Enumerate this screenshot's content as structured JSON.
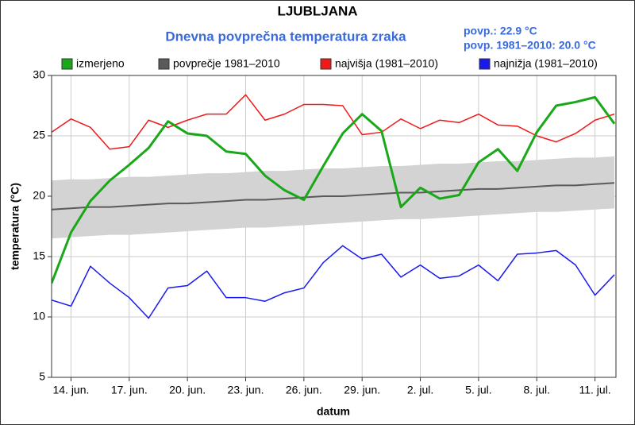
{
  "chart_data": {
    "type": "line",
    "title": "LJUBLJANA",
    "subtitle": "Dnevna povprečna temperatura zraka",
    "annotations": [
      "povp.: 22.9 °C",
      "povp. 1981–2010: 20.0 °C"
    ],
    "xlabel": "datum",
    "ylabel": "temperatura (°C)",
    "categories": [
      null,
      "14. jun.",
      null,
      null,
      "17. jun.",
      null,
      null,
      "20. jun.",
      null,
      null,
      "23. jun.",
      null,
      null,
      "26. jun.",
      null,
      null,
      "29. jun.",
      null,
      null,
      "2. jul.",
      null,
      null,
      "5. jul.",
      null,
      null,
      "8. jul.",
      null,
      null,
      "11. jul.",
      null
    ],
    "ylim": [
      5,
      30
    ],
    "yticks": [
      5,
      10,
      15,
      20,
      25,
      30
    ],
    "grid": true,
    "legend": "top",
    "band": {
      "color": "#d3d3d3",
      "lower": [
        16.5,
        16.6,
        16.7,
        16.8,
        16.8,
        16.9,
        17.0,
        17.1,
        17.2,
        17.3,
        17.4,
        17.4,
        17.5,
        17.6,
        17.7,
        17.8,
        17.9,
        18.0,
        18.1,
        18.1,
        18.2,
        18.3,
        18.4,
        18.5,
        18.6,
        18.7,
        18.7,
        18.8,
        18.9,
        19.0
      ],
      "upper": [
        21.3,
        21.4,
        21.4,
        21.5,
        21.6,
        21.6,
        21.7,
        21.8,
        21.9,
        21.9,
        22.0,
        22.1,
        22.1,
        22.2,
        22.3,
        22.3,
        22.4,
        22.5,
        22.5,
        22.6,
        22.7,
        22.7,
        22.8,
        22.9,
        22.9,
        23.0,
        23.1,
        23.2,
        23.2,
        23.3
      ]
    },
    "series": [
      {
        "name": "izmerjeno",
        "color": "#18a818",
        "width": 3,
        "values": [
          12.8,
          17.0,
          19.6,
          21.3,
          22.6,
          24.0,
          26.2,
          25.2,
          25.0,
          23.7,
          23.5,
          21.7,
          20.5,
          19.7,
          22.5,
          25.2,
          26.8,
          25.4,
          19.1,
          20.7,
          19.8,
          20.1,
          22.8,
          23.9,
          22.1,
          25.3,
          27.5,
          27.8,
          28.2,
          26.0
        ]
      },
      {
        "name": "povprečje 1981–2010",
        "color": "#5a5a5a",
        "width": 2,
        "values": [
          18.9,
          19.0,
          19.1,
          19.1,
          19.2,
          19.3,
          19.4,
          19.4,
          19.5,
          19.6,
          19.7,
          19.7,
          19.8,
          19.9,
          20.0,
          20.0,
          20.1,
          20.2,
          20.3,
          20.3,
          20.4,
          20.5,
          20.6,
          20.6,
          20.7,
          20.8,
          20.9,
          20.9,
          21.0,
          21.1
        ]
      },
      {
        "name": "najvišja (1981–2010)",
        "color": "#f01818",
        "width": 1.5,
        "values": [
          25.3,
          26.4,
          25.7,
          23.9,
          24.1,
          26.3,
          25.7,
          26.3,
          26.8,
          26.8,
          28.4,
          26.3,
          26.8,
          27.6,
          27.6,
          27.5,
          25.1,
          25.3,
          26.4,
          25.6,
          26.3,
          26.1,
          26.8,
          25.9,
          25.8,
          25.0,
          24.5,
          25.2,
          26.3,
          26.8
        ]
      },
      {
        "name": "najnižja (1981–2010)",
        "color": "#1818f0",
        "width": 1.5,
        "values": [
          11.4,
          10.9,
          14.2,
          12.8,
          11.6,
          9.9,
          12.4,
          12.6,
          13.8,
          11.6,
          11.6,
          11.3,
          12.0,
          12.4,
          14.5,
          15.9,
          14.8,
          15.2,
          13.3,
          14.3,
          13.2,
          13.4,
          14.3,
          13.0,
          15.2,
          15.3,
          15.5,
          14.3,
          11.8,
          13.5
        ]
      }
    ]
  }
}
